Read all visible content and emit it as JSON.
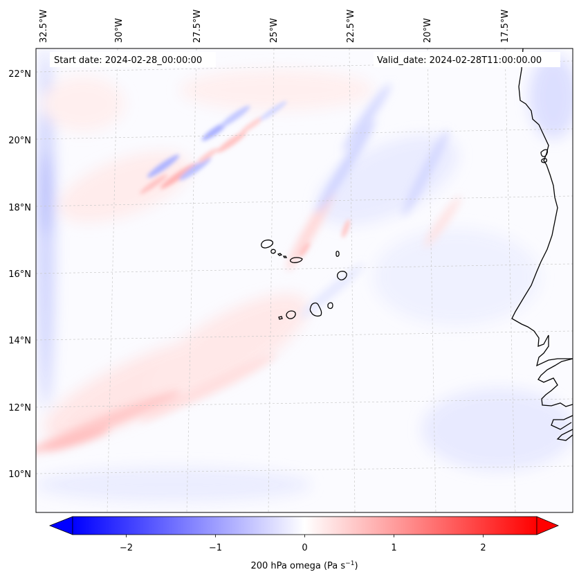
{
  "map": {
    "start_date_label": "Start date: 2024-02-28_00:00:00",
    "valid_date_label": "Valid_date: 2024-02-28T11:00:00.00",
    "variable": "200 hPa omega",
    "lon_labels": [
      "32.5°W",
      "30°W",
      "27.5°W",
      "25°W",
      "22.5°W",
      "20°W",
      "17.5°W"
    ],
    "lat_labels": [
      "22°N",
      "20°N",
      "18°N",
      "16°N",
      "14°N",
      "12°N",
      "10°N"
    ],
    "colorbar": {
      "label_prefix": "200 hPa omega (Pa s",
      "label_exponent": "−1",
      "label_suffix": ")",
      "ticks": [
        "−2",
        "−1",
        "0",
        "1",
        "2"
      ],
      "tick_values": [
        -2,
        -1,
        0,
        1,
        2
      ],
      "vmin": -2.6,
      "vmax": 2.6,
      "colormap": "bwr",
      "extend": "both"
    },
    "colors": {
      "negative": "#0000ff",
      "zero": "#ffffff",
      "positive": "#ff0000",
      "coastline": "#000000",
      "gridline": "#c8c8c8"
    }
  }
}
